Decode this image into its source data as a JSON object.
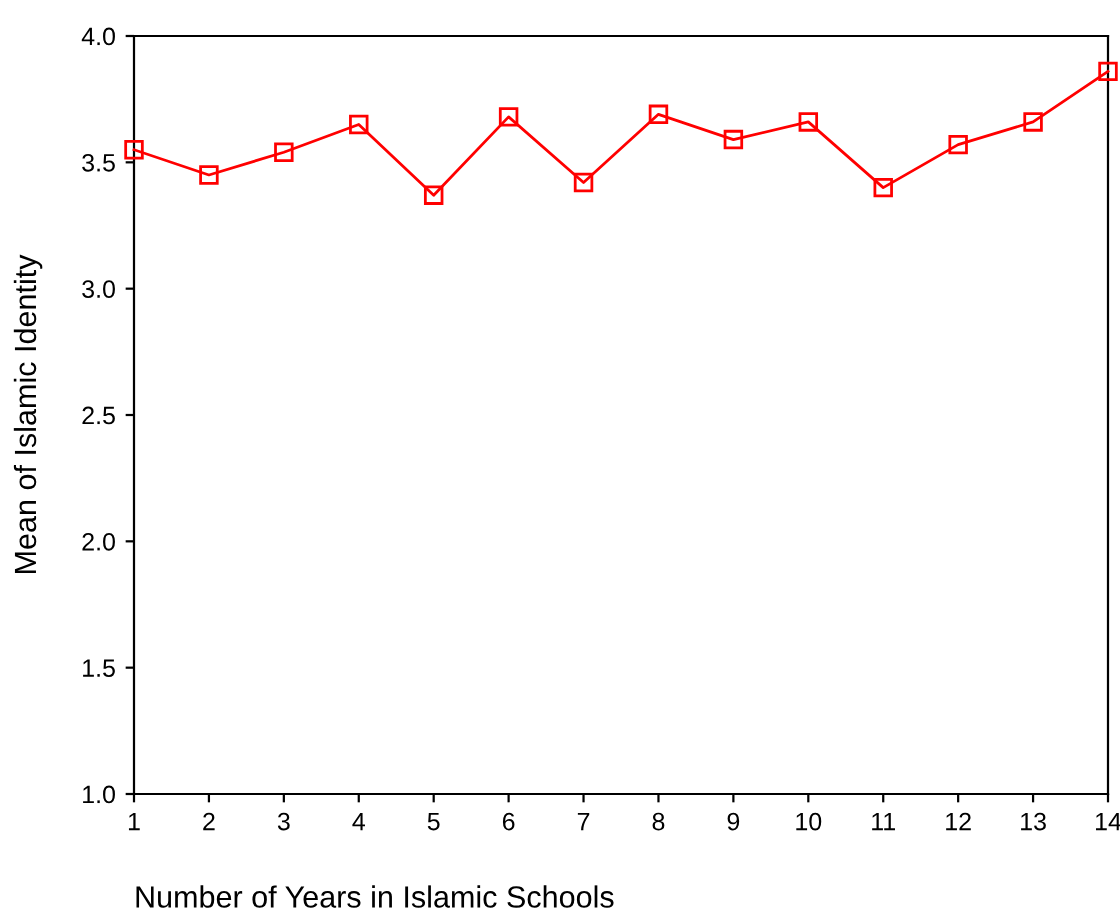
{
  "chart_data": {
    "type": "line",
    "xlabel": "Number of Years in Islamic Schools",
    "ylabel": "Mean of Islamic Identity",
    "x": [
      1,
      2,
      3,
      4,
      5,
      6,
      7,
      8,
      9,
      10,
      11,
      12,
      13,
      14
    ],
    "series": [
      {
        "color": "#ff0000",
        "values": [
          3.55,
          3.45,
          3.54,
          3.65,
          3.37,
          3.68,
          3.42,
          3.69,
          3.59,
          3.66,
          3.4,
          3.57,
          3.66,
          3.86
        ]
      }
    ],
    "xlim": [
      1,
      14
    ],
    "xticks": [
      1,
      2,
      3,
      4,
      5,
      6,
      7,
      8,
      9,
      10,
      11,
      12,
      13,
      14
    ],
    "ylim": [
      1.0,
      4.0
    ],
    "yticks": [
      {
        "value": 1.0,
        "label": "1.0"
      },
      {
        "value": 1.5,
        "label": "1.5"
      },
      {
        "value": 2.0,
        "label": "2.0"
      },
      {
        "value": 2.5,
        "label": "2.5"
      },
      {
        "value": 3.0,
        "label": "3.0"
      },
      {
        "value": 3.5,
        "label": "3.5"
      },
      {
        "value": 4.0,
        "label": "4.0"
      }
    ],
    "marker": "square",
    "line_style": "solid",
    "grid": false,
    "legend": false
  }
}
